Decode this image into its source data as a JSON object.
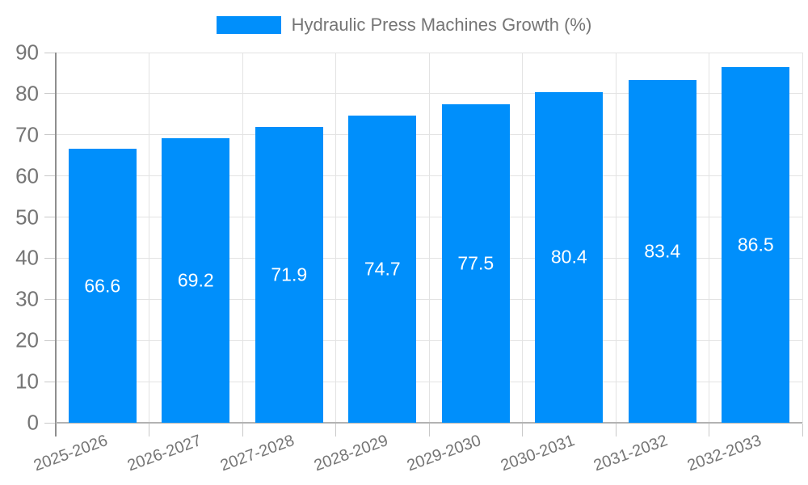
{
  "chart_data": {
    "type": "bar",
    "title": "Hydraulic Press Machines Growth (%)",
    "xlabel": "",
    "ylabel": "",
    "categories": [
      "2025-2026",
      "2026-2027",
      "2027-2028",
      "2028-2029",
      "2029-2030",
      "2030-2031",
      "2031-2032",
      "2032-2033"
    ],
    "series": [
      {
        "name": "Hydraulic Press Machines Growth (%)",
        "values": [
          66.6,
          69.2,
          71.9,
          74.7,
          77.5,
          80.4,
          83.4,
          86.5
        ]
      }
    ],
    "value_label_decimals": 1,
    "ylim": [
      0,
      90
    ],
    "yticks": [
      0,
      10,
      20,
      30,
      40,
      50,
      60,
      70,
      80,
      90
    ],
    "grid": true,
    "legend_position": "top",
    "x_label_rotation_deg": -20,
    "colors": {
      "bar": "#008FFB",
      "grid": "#e3e3e3",
      "tick": "#c9c9c9",
      "axis": "#8f8f8f",
      "baseline": "#b3b3b3",
      "axis_text": "#757575",
      "value_text": "#ffffff",
      "background": "#ffffff"
    }
  }
}
